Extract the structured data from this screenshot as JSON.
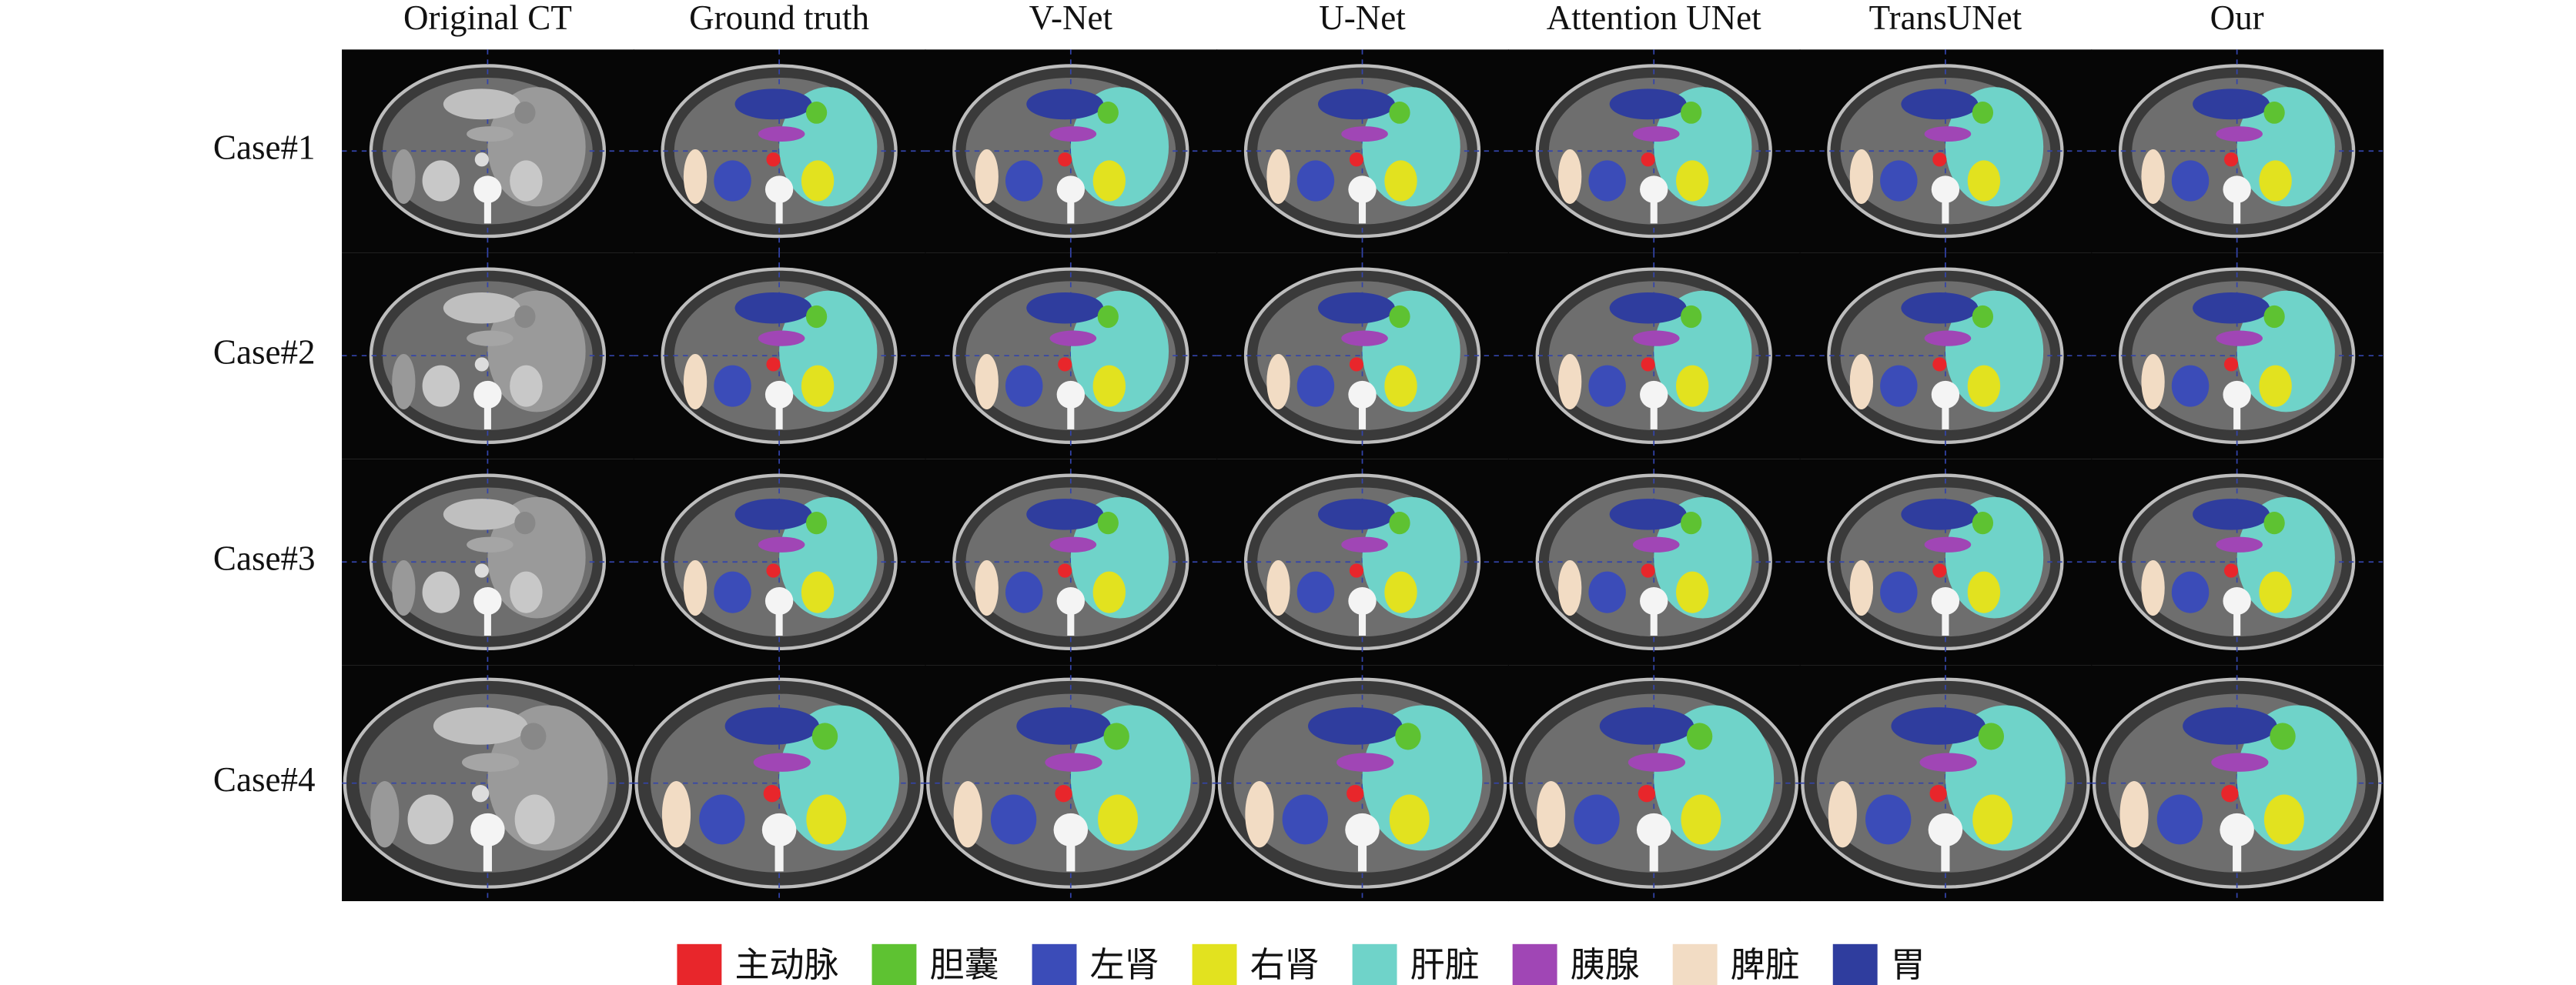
{
  "columns": [
    "Original CT",
    "Ground truth",
    "V-Net",
    "U-Net",
    "Attention UNet",
    "TransUNet",
    "Our"
  ],
  "rows": [
    "Case#1",
    "Case#2",
    "Case#3",
    "Case#4"
  ],
  "legend": [
    {
      "name": "主动脉",
      "color": "#e8262b"
    },
    {
      "name": "胆囊",
      "color": "#5ec232"
    },
    {
      "name": "左肾",
      "color": "#3b4cb8"
    },
    {
      "name": "右肾",
      "color": "#e2e21f"
    },
    {
      "name": "肝脏",
      "color": "#6fd3c9"
    },
    {
      "name": "胰腺",
      "color": "#a046b5"
    },
    {
      "name": "脾脏",
      "color": "#f2dcc4"
    },
    {
      "name": "胃",
      "color": "#2f3d9e"
    }
  ]
}
